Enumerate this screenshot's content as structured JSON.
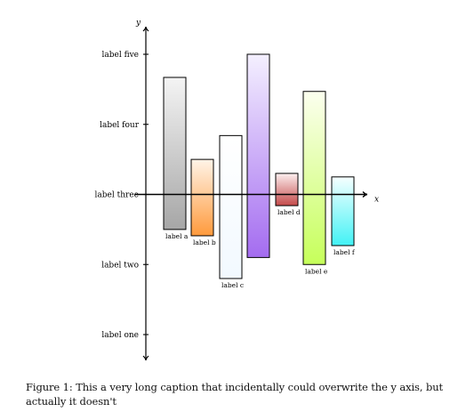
{
  "chart_data": {
    "type": "bar",
    "xlabel": "x",
    "ylabel": "y",
    "yticks": [
      {
        "value": 1,
        "label": "label one"
      },
      {
        "value": 2,
        "label": "label two"
      },
      {
        "value": 3,
        "label": "label three"
      },
      {
        "value": 4,
        "label": "label four"
      },
      {
        "value": 5,
        "label": "label five"
      }
    ],
    "ylim": [
      0.6,
      5.35
    ],
    "baseline": 3,
    "categories": [
      "label a",
      "label b",
      "label c",
      "label d",
      "label e",
      "label f"
    ],
    "bars": [
      {
        "label": "label a",
        "low": 2.5,
        "high": 4.67,
        "top_color": "#f4f4f4",
        "bottom_color": "#a6a6a6"
      },
      {
        "label": "label b",
        "low": 2.41,
        "high": 3.5,
        "top_color": "#fff4e8",
        "bottom_color": "#ff9a3c"
      },
      {
        "label": "label c",
        "low": 1.8,
        "high": 3.84,
        "top_color": "#ffffff",
        "bottom_color": "#f2f9ff"
      },
      {
        "label": "label d",
        "low": 2.84,
        "high": 3.3,
        "top_color": "#fdf0f0",
        "bottom_color": "#c44a4a"
      },
      {
        "label": "label e",
        "low": 2.0,
        "high": 4.47,
        "top_color": "#fcffef",
        "bottom_color": "#c6ff5a"
      },
      {
        "label": "label f",
        "low": 2.27,
        "high": 3.25,
        "top_color": "#f6ffff",
        "bottom_color": "#42f2f5"
      }
    ],
    "bar_g": {
      "label": "",
      "low": 2.1,
      "high": 5.0,
      "top_color": "#f4f0ff",
      "bottom_color": "#a46cf0"
    }
  },
  "caption": {
    "text": "Figure 1: This a very long caption that incidentally could overwrite the y axis, but actually it doesn't"
  }
}
